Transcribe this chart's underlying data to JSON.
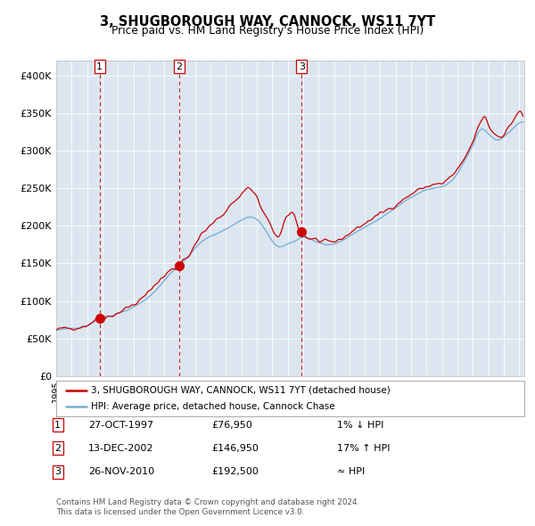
{
  "title": "3, SHUGBOROUGH WAY, CANNOCK, WS11 7YT",
  "subtitle": "Price paid vs. HM Land Registry's House Price Index (HPI)",
  "legend_line1": "3, SHUGBOROUGH WAY, CANNOCK, WS11 7YT (detached house)",
  "legend_line2": "HPI: Average price, detached house, Cannock Chase",
  "sales": [
    {
      "date": "1997-10-27",
      "price": 76950,
      "label": "1",
      "note": "1% ↓ HPI"
    },
    {
      "date": "2002-12-13",
      "price": 146950,
      "label": "2",
      "note": "17% ↑ HPI"
    },
    {
      "date": "2010-11-26",
      "price": 192500,
      "label": "3",
      "note": "≈ HPI"
    }
  ],
  "ylabel_ticks": [
    "£0",
    "£50K",
    "£100K",
    "£150K",
    "£200K",
    "£250K",
    "£300K",
    "£350K",
    "£400K"
  ],
  "ytick_vals": [
    0,
    50000,
    100000,
    150000,
    200000,
    250000,
    300000,
    350000,
    400000
  ],
  "ylim": [
    0,
    420000
  ],
  "hpi_color": "#7bafd4",
  "price_color": "#cc0000",
  "sale_dot_color": "#cc0000",
  "vline_color": "#cc0000",
  "background_color": "#dce6f0",
  "footer": "Contains HM Land Registry data © Crown copyright and database right 2024.\nThis data is licensed under the Open Government Licence v3.0.",
  "note_row1_date": "27-OCT-1997",
  "note_row1_price": "£76,950",
  "note_row1_hpi": "1% ↓ HPI",
  "note_row2_date": "13-DEC-2002",
  "note_row2_price": "£146,950",
  "note_row2_hpi": "17% ↑ HPI",
  "note_row3_date": "26-NOV-2010",
  "note_row3_price": "£192,500",
  "note_row3_hpi": "≈ HPI"
}
